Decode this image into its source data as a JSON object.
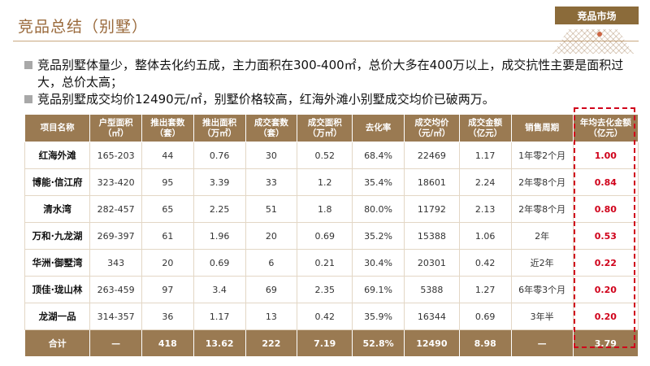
{
  "header": {
    "title": "竞品总结（别墅）",
    "tag": "竞品市场"
  },
  "bullets": [
    "竞品别墅体量少，整体去化约五成，主力面积在300-400㎡，总价大多在400万以上，成交抗性主要是面积过大，总价太高；",
    "竞品别墅成交均价12490元/㎡，别墅价格较高，红海外滩小别墅成交均价已破两万。"
  ],
  "table": {
    "columns": [
      "项目名称",
      "户型面积\n（㎡）",
      "推出套数\n（套）",
      "推出面积\n（万㎡）",
      "成交套数\n（套）",
      "成交面积\n（万㎡）",
      "去化率",
      "成交均价\n（元/㎡）",
      "成交金额\n（亿元）",
      "销售周期",
      "年均去化金额\n（亿元）"
    ],
    "rows": [
      [
        "红海外滩",
        "165-203",
        "44",
        "0.76",
        "30",
        "0.52",
        "68.4%",
        "22469",
        "1.17",
        "1年零2个月",
        "1.00"
      ],
      [
        "博能·信江府",
        "323-420",
        "95",
        "3.39",
        "33",
        "1.2",
        "35.4%",
        "18601",
        "2.24",
        "2年零8个月",
        "0.84"
      ],
      [
        "清水湾",
        "282-457",
        "65",
        "2.25",
        "51",
        "1.8",
        "80.0%",
        "11792",
        "2.13",
        "2年零8个月",
        "0.80"
      ],
      [
        "万和·九龙湖",
        "269-397",
        "61",
        "1.96",
        "20",
        "0.69",
        "35.2%",
        "15388",
        "1.06",
        "2年",
        "0.53"
      ],
      [
        "华洲·御墅湾",
        "343",
        "20",
        "0.69",
        "6",
        "0.21",
        "30.4%",
        "20301",
        "0.42",
        "近2年",
        "0.22"
      ],
      [
        "顶佳·珑山林",
        "263-459",
        "97",
        "3.4",
        "69",
        "2.35",
        "69.1%",
        "5388",
        "1.27",
        "6年零3个月",
        "0.20"
      ],
      [
        "龙湖一品",
        "314-357",
        "36",
        "1.17",
        "13",
        "0.42",
        "35.9%",
        "16344",
        "0.69",
        "3年半",
        "0.20"
      ]
    ],
    "total": [
      "合计",
      "—",
      "418",
      "13.62",
      "222",
      "7.19",
      "52.8%",
      "12490",
      "8.98",
      "—",
      "3.79"
    ]
  },
  "colors": {
    "accent": "#9a7a52",
    "highlight": "#d0021b"
  }
}
